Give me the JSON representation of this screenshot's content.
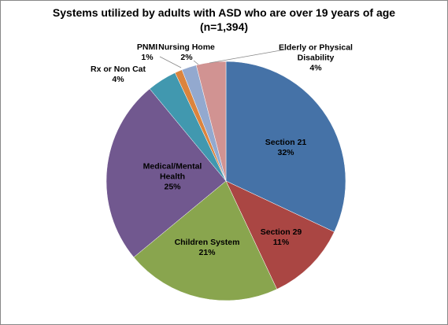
{
  "chart_data": {
    "type": "pie",
    "title": "Systems utilized by adults with ASD who are over 19 years of age",
    "subtitle": "(n=1,394)",
    "categories": [
      "Section 21",
      "Section 29",
      "Children System",
      "Medical/Mental Health",
      "Rx or Non Cat",
      "PNMI",
      "Nursing Home",
      "Elderly or Physical Disability"
    ],
    "values": [
      32,
      11,
      21,
      25,
      4,
      1,
      2,
      4
    ],
    "value_labels": [
      "32%",
      "11%",
      "21%",
      "25%",
      "4%",
      "1%",
      "2%",
      "4%"
    ],
    "colors": [
      "#4572A7",
      "#AA4643",
      "#89A54E",
      "#71588F",
      "#4198AF",
      "#DB843D",
      "#93A9CF",
      "#D19392"
    ]
  }
}
